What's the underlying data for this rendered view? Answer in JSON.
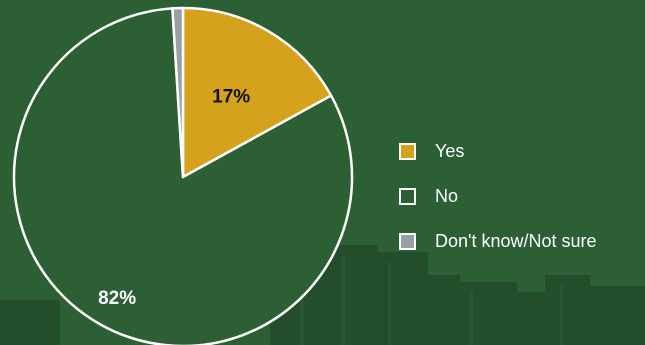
{
  "chart_data": {
    "type": "pie",
    "categories": [
      "Yes",
      "No",
      "Don't know/Not sure"
    ],
    "values": [
      17,
      82,
      1
    ],
    "data_labels": [
      "17%",
      "82%",
      ""
    ],
    "colors": [
      "#d4a21c",
      "#2d5f35",
      "#9a9ea5"
    ],
    "slice_border_color": "#ffffff",
    "legend_placement": "right",
    "start_angle": "12 o'clock, clockwise"
  },
  "legend": {
    "items": [
      {
        "label": "Yes",
        "color": "#d4a21c"
      },
      {
        "label": "No",
        "color": "#2d5f35"
      },
      {
        "label": "Don't know/Not sure",
        "color": "#9a9ea5"
      }
    ]
  }
}
